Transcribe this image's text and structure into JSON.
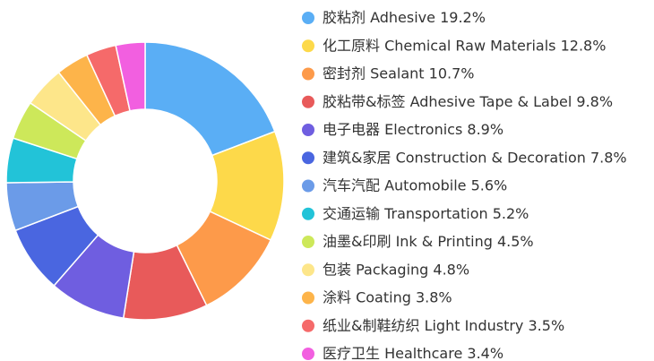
{
  "chart_data": {
    "type": "donut",
    "categories": [
      "胶粘剂 Adhesive",
      "化工原料 Chemical Raw Materials",
      "密封剂 Sealant",
      "胶粘带&标签 Adhesive Tape & Label",
      "电子电器 Electronics",
      "建筑&家居 Construction & Decoration",
      "汽车汽配 Automobile",
      "交通运输 Transportation",
      "油墨&印刷 Ink & Printing",
      "包装 Packaging",
      "涂料 Coating",
      "纸业&制鞋纺织 Light Industry",
      "医疗卫生 Healthcare"
    ],
    "values": [
      19.2,
      12.8,
      10.7,
      9.8,
      8.9,
      7.8,
      5.6,
      5.2,
      4.5,
      4.8,
      3.8,
      3.5,
      3.4
    ],
    "value_labels": [
      "19.2%",
      "12.8%",
      "10.7%",
      "9.8%",
      "8.9%",
      "7.8%",
      "5.6%",
      "5.2%",
      "4.5%",
      "4.8%",
      "3.8%",
      "3.5%",
      "3.4%"
    ],
    "colors": [
      "#5aaef5",
      "#fdd94a",
      "#fd9a4a",
      "#e85a5a",
      "#6f5ee0",
      "#4a66e0",
      "#6b9be8",
      "#22c3d8",
      "#cde85a",
      "#fde68a",
      "#fdb44a",
      "#f56a6a",
      "#f25fe0"
    ]
  }
}
